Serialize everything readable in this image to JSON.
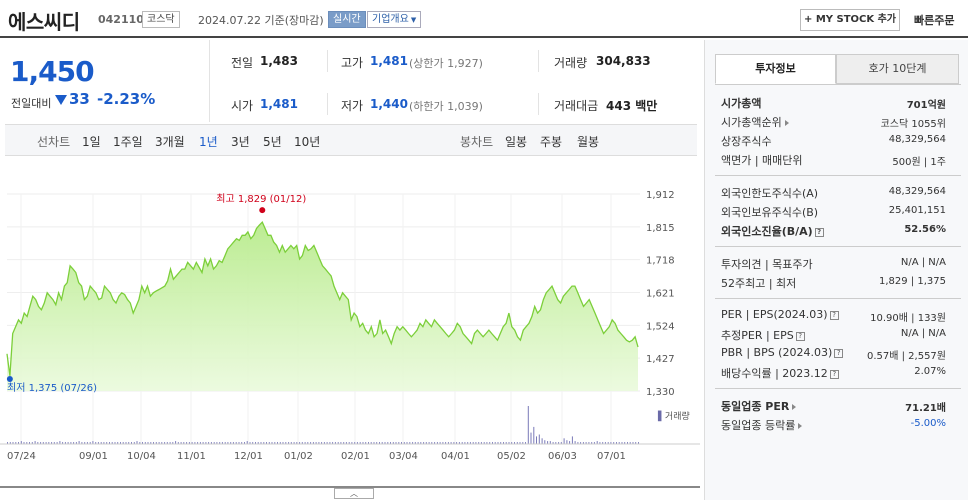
{
  "header": {
    "stock_name": "에스씨디",
    "stock_code": "042110",
    "market_tag": "코스닥",
    "base_date": "2024.07.22  기준(장마감)",
    "live_tag": "실시간",
    "company_info": "기업개요",
    "mystock_button": "+ MY STOCK 추가",
    "quick_order": "빠른주문"
  },
  "price": {
    "current": "1,450",
    "vs_label": "전일대비",
    "change": "33",
    "change_rate": "-2.23%"
  },
  "summary": {
    "prev_label": "전일",
    "prev": "1,483",
    "high_label": "고가",
    "high": "1,481",
    "high_limit": "(상한가 1,927)",
    "volume_label": "거래량",
    "volume": "304,833",
    "open_label": "시가",
    "open": "1,481",
    "low_label": "저가",
    "low": "1,440",
    "low_limit": "(하한가 1,039)",
    "amount_label": "거래대금",
    "amount": "443 백만"
  },
  "period_bar": {
    "line_label": "선차트",
    "periods": [
      "1일",
      "1주일",
      "3개월",
      "1년",
      "3년",
      "5년",
      "10년"
    ],
    "active_period": "1년",
    "candle_label": "봉차트",
    "candles": [
      "일봉",
      "주봉",
      "월봉"
    ]
  },
  "chart_data": {
    "type": "area",
    "x_ticks": [
      "07/24",
      "09/01",
      "10/04",
      "11/01",
      "12/01",
      "01/02",
      "02/01",
      "03/04",
      "04/01",
      "05/02",
      "06/03",
      "07/01"
    ],
    "y_ticks": [
      "1,912",
      "1,815",
      "1,718",
      "1,621",
      "1,524",
      "1,427",
      "1,330"
    ],
    "ylim": [
      1330,
      1912
    ],
    "high_annotation": "최고 1,829 (01/12)",
    "low_annotation": "최저 1,375 (07/26)",
    "volume_label": "거래량",
    "series": [
      {
        "values": [
          1440,
          1375,
          1500,
          1520,
          1540,
          1530,
          1560,
          1550,
          1580,
          1610,
          1600,
          1580,
          1570,
          1590,
          1620,
          1610,
          1600,
          1585,
          1620,
          1600,
          1640,
          1650,
          1700,
          1690,
          1680,
          1650,
          1640,
          1600,
          1610,
          1640,
          1630,
          1620,
          1600,
          1605,
          1640,
          1630,
          1620,
          1600,
          1590,
          1610,
          1620,
          1615,
          1600,
          1590,
          1560,
          1580,
          1600,
          1640,
          1620,
          1640,
          1610,
          1620,
          1625,
          1630,
          1635,
          1640,
          1655,
          1690,
          1660,
          1670,
          1680,
          1690,
          1690,
          1710,
          1700,
          1690,
          1710,
          1695,
          1680,
          1720,
          1700,
          1720,
          1690,
          1700,
          1715,
          1710,
          1730,
          1750,
          1760,
          1770,
          1780,
          1775,
          1790,
          1790,
          1800,
          1780,
          1790,
          1810,
          1820,
          1829,
          1810,
          1790,
          1790,
          1770,
          1760,
          1740,
          1760,
          1740,
          1750,
          1760,
          1750,
          1760,
          1720,
          1730,
          1760,
          1745,
          1750,
          1760,
          1740,
          1720,
          1700,
          1690,
          1680,
          1670,
          1640,
          1620,
          1600,
          1620,
          1610,
          1600,
          1540,
          1560,
          1550,
          1520,
          1530,
          1510,
          1500,
          1520,
          1490,
          1500,
          1540,
          1500,
          1510,
          1490,
          1470,
          1500,
          1520,
          1510,
          1520,
          1510,
          1500,
          1490,
          1500,
          1510,
          1530,
          1520,
          1540,
          1530,
          1520,
          1540,
          1530,
          1520,
          1510,
          1500,
          1490,
          1500,
          1510,
          1530,
          1520,
          1500,
          1490,
          1480,
          1470,
          1500,
          1510,
          1500,
          1490,
          1500,
          1510,
          1500,
          1490,
          1480,
          1500,
          1520,
          1530,
          1560,
          1520,
          1510,
          1490,
          1480,
          1510,
          1520,
          1530,
          1550,
          1580,
          1560,
          1570,
          1600,
          1620,
          1630,
          1640,
          1620,
          1600,
          1590,
          1610,
          1620,
          1630,
          1640,
          1640,
          1620,
          1600,
          1580,
          1590,
          1600,
          1580,
          1560,
          1540,
          1520,
          1500,
          1510,
          1520,
          1540,
          1530,
          1510,
          1500,
          1490,
          1480,
          1475,
          1480,
          1490,
          1460
        ]
      }
    ],
    "volume": [
      2,
      2,
      2,
      2,
      2,
      3,
      2,
      2,
      2,
      2,
      3,
      2,
      2,
      2,
      2,
      2,
      2,
      2,
      2,
      3,
      2,
      2,
      2,
      2,
      2,
      2,
      3,
      2,
      2,
      2,
      2,
      3,
      2,
      2,
      2,
      2,
      2,
      2,
      2,
      2,
      2,
      2,
      2,
      2,
      2,
      2,
      2,
      3,
      2,
      2,
      2,
      2,
      2,
      2,
      2,
      2,
      2,
      2,
      2,
      2,
      2,
      3,
      2,
      2,
      2,
      2,
      2,
      2,
      2,
      2,
      2,
      2,
      2,
      2,
      2,
      2,
      2,
      2,
      2,
      2,
      2,
      2,
      2,
      2,
      2,
      2,
      2,
      3,
      2,
      2,
      2,
      2,
      2,
      2,
      2,
      2,
      2,
      2,
      2,
      2,
      2,
      2,
      2,
      2,
      2,
      2,
      2,
      2,
      2,
      2,
      2,
      2,
      2,
      2,
      2,
      2,
      2,
      2,
      2,
      2,
      2,
      2,
      2,
      2,
      2,
      2,
      2,
      2,
      2,
      2,
      2,
      2,
      2,
      2,
      2,
      2,
      2,
      2,
      2,
      2,
      2,
      2,
      2,
      2,
      2,
      2,
      2,
      2,
      2,
      2,
      2,
      2,
      2,
      2,
      2,
      2,
      2,
      2,
      2,
      2,
      2,
      2,
      2,
      2,
      2,
      2,
      2,
      2,
      2,
      2,
      2,
      2,
      2,
      2,
      2,
      2,
      2,
      2,
      2,
      2,
      2,
      2,
      2,
      2,
      2,
      2,
      2,
      2,
      2,
      40,
      12,
      18,
      8,
      10,
      6,
      4,
      3,
      3,
      2,
      2,
      2,
      2,
      6,
      4,
      3,
      8,
      3,
      2,
      2,
      2,
      2,
      2,
      2,
      2,
      3,
      2,
      2,
      2,
      2,
      2,
      2,
      2,
      2,
      2,
      2,
      2,
      2,
      2,
      2,
      2
    ]
  },
  "right_panel": {
    "tab_active": "투자정보",
    "tab_inactive": "호가 10단계",
    "market_cap_label": "시가총액",
    "market_cap": "701억원",
    "cap_rank_label": "시가총액순위",
    "cap_rank": "코스닥 1055위",
    "listed_shares_label": "상장주식수",
    "listed_shares": "48,329,564",
    "par_label": "액면가 | 매매단위",
    "par": "500원 | 1주",
    "foreign_limit_label": "외국인한도주식수(A)",
    "foreign_limit": "48,329,564",
    "foreign_hold_label": "외국인보유주식수(B)",
    "foreign_hold": "25,401,151",
    "foreign_ratio_label": "외국인소진율(B/A)",
    "foreign_ratio": "52.56%",
    "opinion_label": "투자의견 | 목표주가",
    "opinion": "N/A | N/A",
    "week52_label": "52주최고 | 최저",
    "week52": "1,829 | 1,375",
    "per_label": "PER | EPS(2024.03)",
    "per": "10.90배 | 133원",
    "est_per_label": "추정PER | EPS",
    "est_per": "N/A | N/A",
    "pbr_label": "PBR | BPS (2024.03)",
    "pbr": "0.57배 | 2,557원",
    "dividend_label": "배당수익률 | 2023.12",
    "dividend": "2.07%",
    "sector_per_label": "동일업종 PER",
    "sector_per": "71.21배",
    "sector_rate_label": "동일업종 등락률",
    "sector_rate": "-5.00%",
    "colors": {
      "down": "#1a5bc9",
      "up": "#d0021b",
      "chart_line": "#7ccf3a"
    }
  }
}
